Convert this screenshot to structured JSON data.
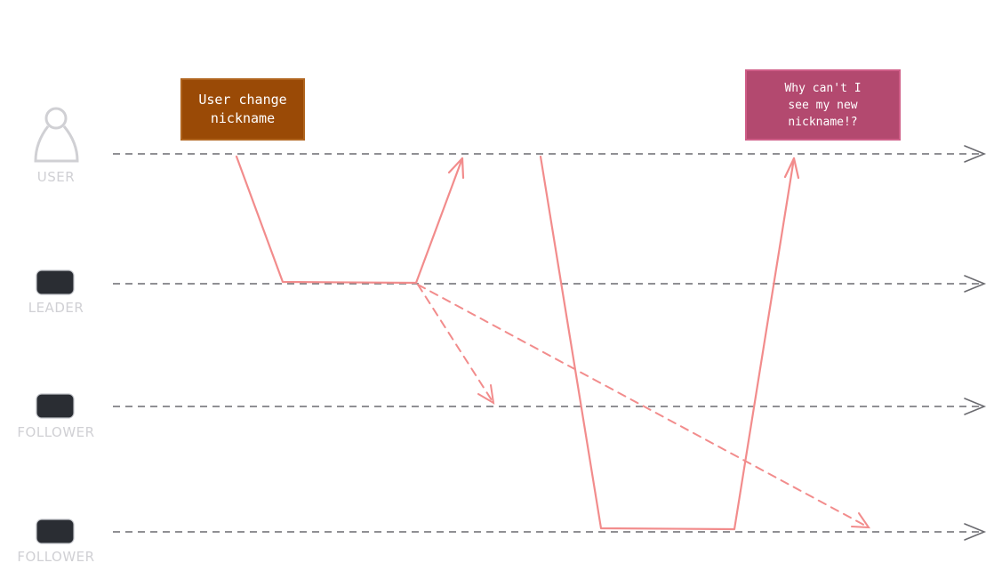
{
  "actors": [
    {
      "key": "user",
      "label": "USER",
      "icon": "user-icon"
    },
    {
      "key": "leader",
      "label": "LEADER",
      "icon": "server-icon"
    },
    {
      "key": "follower1",
      "label": "FOLLOWER",
      "icon": "server-icon"
    },
    {
      "key": "follower2",
      "label": "FOLLOWER",
      "icon": "server-icon"
    }
  ],
  "notes": [
    {
      "text": "User change\nnickname",
      "color": "#9a4a06"
    },
    {
      "text": "Why can't I\nsee my new\nnickname!?",
      "color": "#b3496f"
    }
  ],
  "colors": {
    "lifeline": "#6b6b70",
    "message": "#f28c8c",
    "actor": "#d0d0d4",
    "server": "#2a2d33"
  }
}
